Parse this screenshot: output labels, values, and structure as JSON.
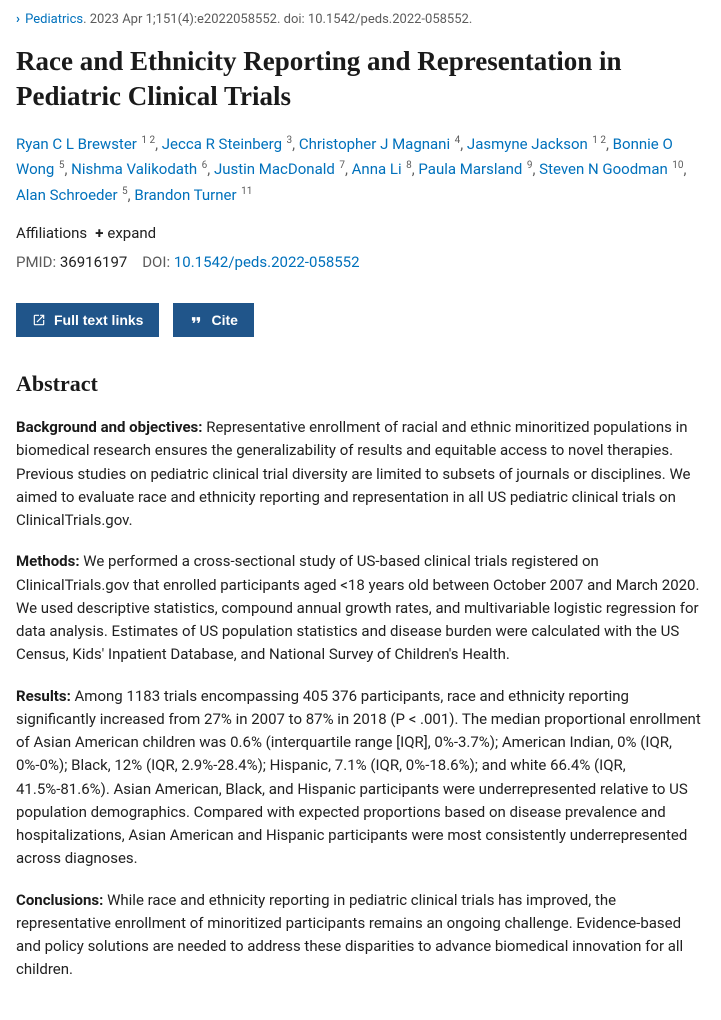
{
  "citation": {
    "journal": "Pediatrics",
    "date_vol": ". 2023 Apr 1;151(4):e2022058552.",
    "doi_prefix": " doi: 10.1542/peds.2022-058552."
  },
  "title": "Race and Ethnicity Reporting and Representation in Pediatric Clinical Trials",
  "authors": [
    {
      "name": "Ryan C L Brewster",
      "affil": "1 2"
    },
    {
      "name": "Jecca R Steinberg",
      "affil": "3"
    },
    {
      "name": "Christopher J Magnani",
      "affil": "4"
    },
    {
      "name": "Jasmyne Jackson",
      "affil": "1 2"
    },
    {
      "name": "Bonnie O Wong",
      "affil": "5"
    },
    {
      "name": "Nishma Valikodath",
      "affil": "6"
    },
    {
      "name": "Justin MacDonald",
      "affil": "7"
    },
    {
      "name": "Anna Li",
      "affil": "8"
    },
    {
      "name": "Paula Marsland",
      "affil": "9"
    },
    {
      "name": "Steven N Goodman",
      "affil": "10"
    },
    {
      "name": "Alan Schroeder",
      "affil": "5"
    },
    {
      "name": "Brandon Turner",
      "affil": "11"
    }
  ],
  "affiliations_label": "Affiliations",
  "expand_label": "expand",
  "pmid_label": "PMID:",
  "pmid_value": "36916197",
  "doi_label": "DOI:",
  "doi_value": "10.1542/peds.2022-058552",
  "btn_fulltext": "Full text links",
  "btn_cite": "Cite",
  "abstract_heading": "Abstract",
  "sections": {
    "background": {
      "label": "Background and objectives:",
      "text": " Representative enrollment of racial and ethnic minoritized populations in biomedical research ensures the generalizability of results and equitable access to novel therapies. Previous studies on pediatric clinical trial diversity are limited to subsets of journals or disciplines. We aimed to evaluate race and ethnicity reporting and representation in all US pediatric clinical trials on ClinicalTrials.gov."
    },
    "methods": {
      "label": "Methods:",
      "text": " We performed a cross-sectional study of US-based clinical trials registered on ClinicalTrials.gov that enrolled participants aged <18 years old between October 2007 and March 2020. We used descriptive statistics, compound annual growth rates, and multivariable logistic regression for data analysis. Estimates of US population statistics and disease burden were calculated with the US Census, Kids' Inpatient Database, and National Survey of Children's Health."
    },
    "results": {
      "label": "Results:",
      "text": " Among 1183 trials encompassing 405 376 participants, race and ethnicity reporting significantly increased from 27% in 2007 to 87% in 2018 (P < .001). The median proportional enrollment of Asian American children was 0.6% (interquartile range [IQR], 0%-3.7%); American Indian, 0% (IQR, 0%-0%); Black, 12% (IQR, 2.9%-28.4%); Hispanic, 7.1% (IQR, 0%-18.6%); and white 66.4% (IQR, 41.5%-81.6%). Asian American, Black, and Hispanic participants were underrepresented relative to US population demographics. Compared with expected proportions based on disease prevalence and hospitalizations, Asian American and Hispanic participants were most consistently underrepresented across diagnoses."
    },
    "conclusions": {
      "label": "Conclusions:",
      "text": " While race and ethnicity reporting in pediatric clinical trials has improved, the representative enrollment of minoritized participants remains an ongoing challenge. Evidence-based and policy solutions are needed to address these disparities to advance biomedical innovation for all children."
    }
  }
}
